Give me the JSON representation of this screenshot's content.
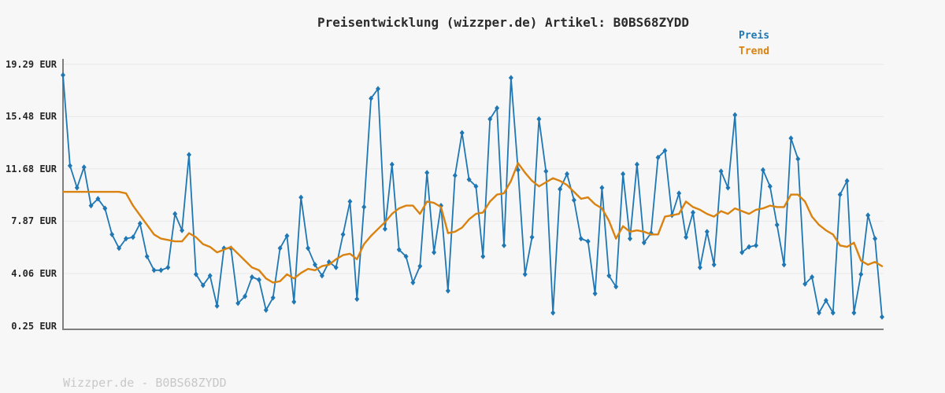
{
  "header": {
    "title": "Preisentwicklung (wizzper.de) Artikel: B0BS68ZYDD"
  },
  "legend": {
    "items": [
      {
        "label": "Preis",
        "color": "#1f77b4"
      },
      {
        "label": "Trend",
        "color": "#d9820f"
      }
    ],
    "position": "top-right"
  },
  "footer": {
    "text": "Wizzper.de - B0BS68ZYDD"
  },
  "colors": {
    "price_line": "#1f77b4",
    "trend_line": "#d9820f",
    "grid": "#e8e8e8",
    "axis": "#7f7f7f",
    "background": "#f7f7f7"
  },
  "chart_data": {
    "type": "line",
    "title": "Preisentwicklung (wizzper.de) Artikel: B0BS68ZYDD",
    "xlabel": "",
    "ylabel": "",
    "x_tick_labels": [],
    "grid": true,
    "legend_position": "top-right",
    "ylim": [
      0.0,
      19.67
    ],
    "y_ticks": [
      {
        "label": "19.29 EUR",
        "value": 19.29
      },
      {
        "label": "15.48 EUR",
        "value": 15.48
      },
      {
        "label": "11.68 EUR",
        "value": 11.68
      },
      {
        "label": "7.87 EUR",
        "value": 7.87
      },
      {
        "label": "4.06 EUR",
        "value": 4.06
      },
      {
        "label": "0.25 EUR",
        "value": 0.25
      }
    ],
    "unit": "EUR",
    "series": [
      {
        "name": "Preis",
        "color": "#1f77b4",
        "marker": "diamond",
        "line_width": 1.8,
        "values": [
          18.5,
          11.9,
          10.3,
          11.8,
          9.0,
          9.5,
          8.8,
          6.9,
          5.9,
          6.6,
          6.7,
          7.7,
          5.3,
          4.3,
          4.3,
          4.5,
          8.4,
          7.2,
          12.7,
          4.0,
          3.2,
          3.9,
          1.7,
          5.9,
          5.9,
          1.9,
          2.4,
          3.8,
          3.6,
          1.4,
          2.3,
          5.9,
          6.8,
          2.0,
          9.6,
          5.9,
          4.7,
          3.9,
          4.9,
          4.5,
          6.9,
          9.3,
          2.2,
          8.9,
          16.8,
          17.5,
          7.3,
          12.0,
          5.8,
          5.3,
          3.4,
          4.6,
          11.4,
          5.6,
          9.0,
          2.8,
          11.2,
          14.3,
          10.9,
          10.4,
          5.3,
          15.3,
          16.1,
          6.1,
          18.3,
          11.6,
          4.0,
          6.7,
          15.3,
          11.5,
          1.2,
          10.2,
          11.3,
          9.4,
          6.6,
          6.4,
          2.6,
          10.3,
          3.9,
          3.1,
          11.3,
          6.6,
          12.0,
          6.3,
          7.0,
          12.5,
          13.0,
          8.3,
          9.9,
          6.7,
          8.5,
          4.5,
          7.1,
          4.7,
          11.5,
          10.3,
          15.6,
          5.6,
          6.0,
          6.1,
          11.6,
          10.4,
          7.6,
          4.7,
          13.9,
          12.4,
          3.3,
          3.8,
          1.2,
          2.1,
          1.2,
          9.8,
          10.8,
          1.2,
          4.0,
          8.3,
          6.6,
          0.9
        ]
      },
      {
        "name": "Trend",
        "color": "#d9820f",
        "marker": "none",
        "line_width": 2.4,
        "values": [
          10.0,
          10.0,
          10.0,
          10.0,
          10.0,
          10.0,
          10.0,
          10.0,
          10.0,
          9.9,
          9.0,
          8.3,
          7.6,
          6.9,
          6.6,
          6.5,
          6.4,
          6.4,
          7.0,
          6.7,
          6.2,
          6.0,
          5.6,
          5.8,
          6.0,
          5.5,
          5.0,
          4.5,
          4.3,
          3.7,
          3.4,
          3.5,
          4.0,
          3.7,
          4.1,
          4.4,
          4.3,
          4.6,
          4.7,
          5.1,
          5.4,
          5.5,
          5.1,
          6.2,
          6.8,
          7.3,
          7.8,
          8.4,
          8.8,
          9.0,
          9.0,
          8.4,
          9.3,
          9.2,
          8.9,
          7.0,
          7.1,
          7.4,
          8.0,
          8.4,
          8.5,
          9.3,
          9.8,
          9.9,
          10.8,
          12.1,
          11.4,
          10.8,
          10.4,
          10.7,
          11.0,
          10.8,
          10.5,
          10.0,
          9.5,
          9.6,
          9.1,
          8.8,
          7.9,
          6.6,
          7.5,
          7.1,
          7.2,
          7.1,
          6.9,
          6.9,
          8.2,
          8.3,
          8.4,
          9.3,
          8.9,
          8.7,
          8.4,
          8.2,
          8.6,
          8.4,
          8.8,
          8.6,
          8.4,
          8.7,
          8.8,
          9.0,
          8.9,
          8.9,
          9.8,
          9.8,
          9.3,
          8.2,
          7.6,
          7.2,
          6.9,
          6.1,
          6.0,
          6.3,
          5.0,
          4.7,
          4.9,
          4.6
        ]
      }
    ]
  }
}
